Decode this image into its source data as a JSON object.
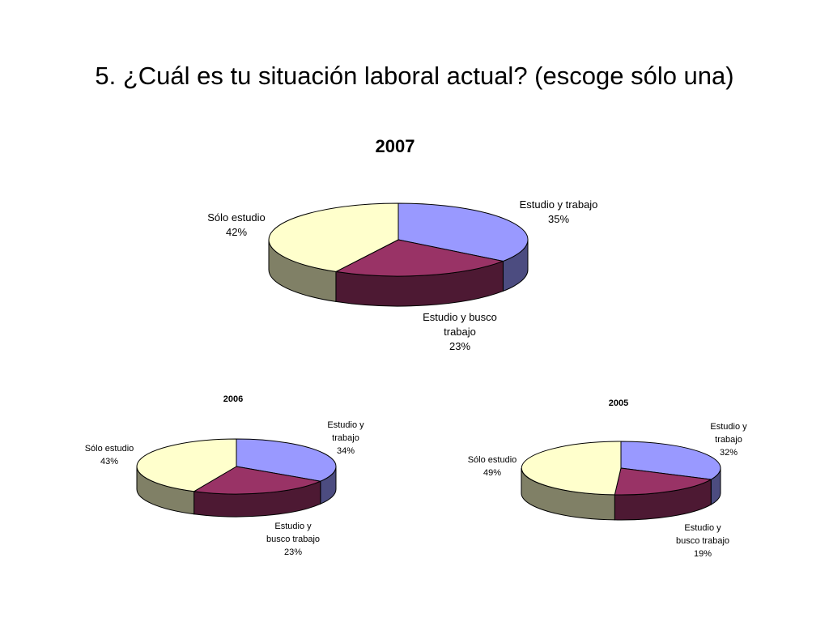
{
  "slide": {
    "title": "5. ¿Cuál es tu situación laboral actual? (escoge sólo una)"
  },
  "colors": {
    "estudio_y_trabajo": {
      "top": "#9999ff",
      "side": "#4c4c80"
    },
    "estudio_y_busco_trabajo": {
      "top": "#993366",
      "side": "#4d1933"
    },
    "solo_estudio": {
      "top": "#ffffcc",
      "side": "#808066"
    },
    "edge": "#000000"
  },
  "chart_data": [
    {
      "type": "pie",
      "title": "2007",
      "series": [
        {
          "name": "Estudio y trabajo",
          "value": 35,
          "label": [
            "Estudio y trabajo",
            "35%"
          ]
        },
        {
          "name": "Estudio y busco trabajo",
          "value": 23,
          "label": [
            "Estudio y busco",
            "trabajo",
            "23%"
          ]
        },
        {
          "name": "Sólo estudio",
          "value": 42,
          "label": [
            "Sólo estudio",
            "42%"
          ]
        }
      ]
    },
    {
      "type": "pie",
      "title": "2006",
      "series": [
        {
          "name": "Estudio y trabajo",
          "value": 34,
          "label": [
            "Estudio y",
            "trabajo",
            "34%"
          ]
        },
        {
          "name": "Estudio y busco trabajo",
          "value": 23,
          "label": [
            "Estudio y",
            "busco trabajo",
            "23%"
          ]
        },
        {
          "name": "Sólo estudio",
          "value": 43,
          "label": [
            "Sólo estudio",
            "43%"
          ]
        }
      ]
    },
    {
      "type": "pie",
      "title": "2005",
      "series": [
        {
          "name": "Estudio y trabajo",
          "value": 32,
          "label": [
            "Estudio y",
            "trabajo",
            "32%"
          ]
        },
        {
          "name": "Estudio y busco trabajo",
          "value": 19,
          "label": [
            "Estudio y",
            "busco trabajo",
            "19%"
          ]
        },
        {
          "name": "Sólo estudio",
          "value": 49,
          "label": [
            "Sólo estudio",
            "49%"
          ]
        }
      ]
    }
  ]
}
